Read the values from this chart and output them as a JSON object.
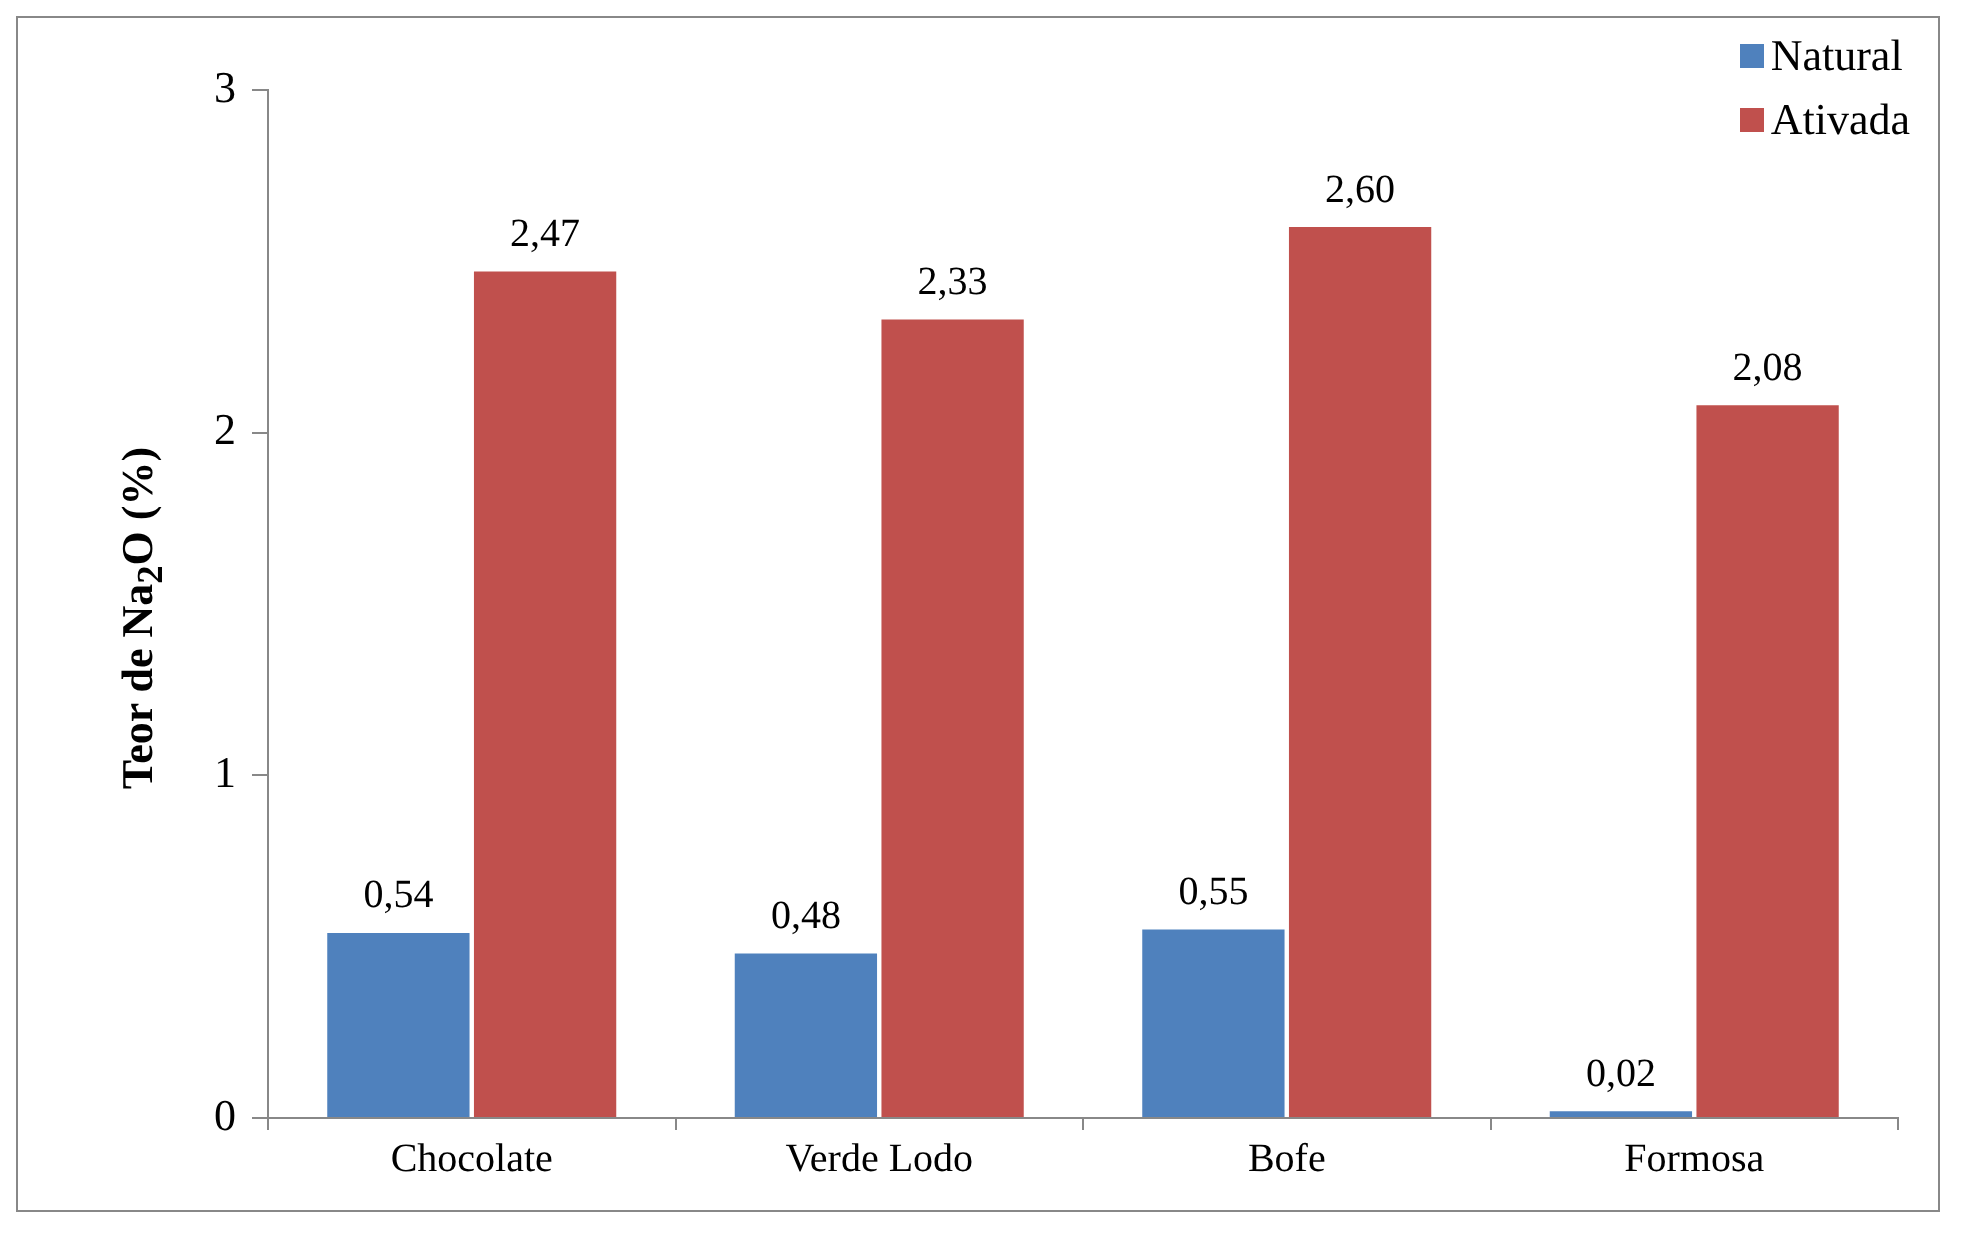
{
  "chart_data": {
    "type": "bar",
    "ylabel": "Teor de Na$_{2}$O (%)",
    "categories": [
      "Chocolate",
      "Verde Lodo",
      "Bofe",
      "Formosa"
    ],
    "series": [
      {
        "name": "Natural",
        "color": "#4f81bd",
        "values": [
          0.54,
          0.48,
          0.55,
          0.02
        ],
        "value_labels": [
          "0,54",
          "0,48",
          "0,55",
          "0,02"
        ]
      },
      {
        "name": "Ativada",
        "color": "#c0504d",
        "values": [
          2.47,
          2.33,
          2.6,
          2.08
        ],
        "value_labels": [
          "2,47",
          "2,33",
          "2,60",
          "2,08"
        ]
      }
    ],
    "ylim": [
      0,
      3
    ],
    "yticks": [
      0,
      1,
      2,
      3
    ],
    "legend": "top right"
  }
}
